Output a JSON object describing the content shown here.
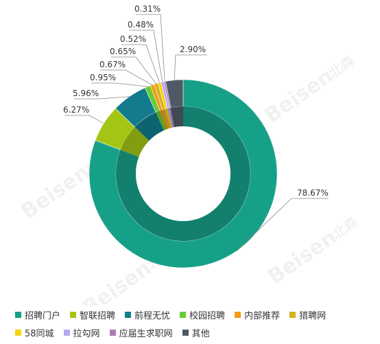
{
  "chart_data": {
    "type": "pie",
    "variant": "donut",
    "categories": [
      "招聘门户",
      "智联招聘",
      "前程无忧",
      "校园招聘",
      "内部推荐",
      "猎聘网",
      "58同城",
      "拉勾网",
      "应届生求职网",
      "其他"
    ],
    "values": [
      78.67,
      6.27,
      5.96,
      0.95,
      0.67,
      0.65,
      0.52,
      0.48,
      0.31,
      2.9
    ],
    "labels": [
      "78.67%",
      "6.27%",
      "5.96%",
      "0.95%",
      "0.67%",
      "0.65%",
      "0.52%",
      "0.48%",
      "0.31%",
      "2.90%"
    ],
    "colors": [
      "#17a088",
      "#a3c614",
      "#127c8c",
      "#66cc33",
      "#f39a17",
      "#d8b01e",
      "#f5d310",
      "#b6a8f0",
      "#b07ab8",
      "#505a66"
    ],
    "legend_position": "bottom",
    "watermark": "Beisen 北森"
  }
}
